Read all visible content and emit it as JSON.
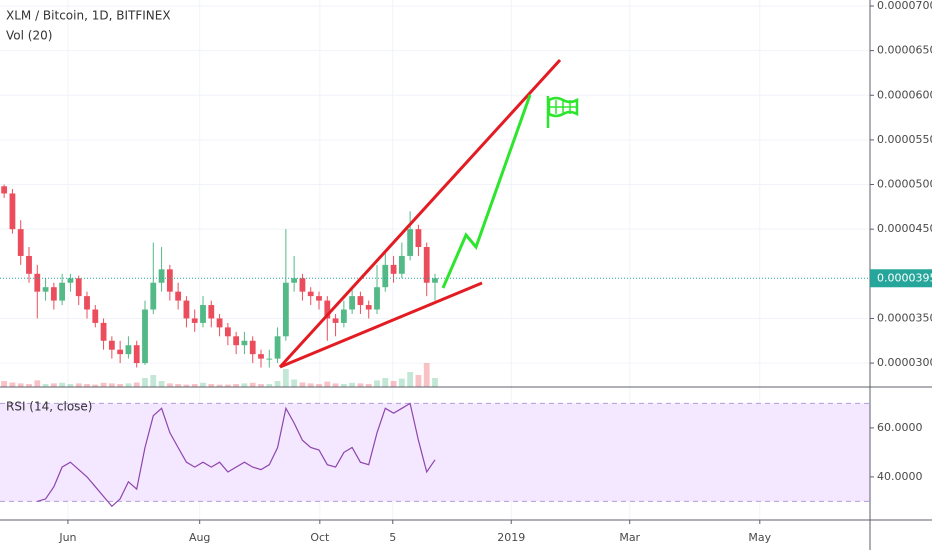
{
  "chart_data": {
    "type": "candlestick",
    "title": "XLM / Bitcoin, 1D, BITFINEX",
    "volume_label": "Vol (20)",
    "open": [
      4.98e-05,
      4.9e-05,
      4.5e-05,
      4.2e-05,
      4e-05,
      3.8e-05,
      3.85e-05,
      3.7e-05,
      3.9e-05,
      3.95e-05,
      3.75e-05,
      3.6e-05,
      3.45e-05,
      3.25e-05,
      3.15e-05,
      3.1e-05,
      3.2e-05,
      3e-05,
      3.6e-05,
      3.9e-05,
      4.05e-05,
      3.8e-05,
      3.7e-05,
      3.5e-05,
      3.45e-05,
      3.65e-05,
      3.5e-05,
      3.4e-05,
      3.3e-05,
      3.2e-05,
      3.25e-05,
      3.1e-05,
      3.05e-05,
      3.05e-05,
      3.3e-05,
      3.9e-05,
      3.95e-05,
      3.8e-05,
      3.75e-05,
      3.7e-05,
      3.5e-05,
      3.45e-05,
      3.6e-05,
      3.75e-05,
      3.65e-05,
      3.6e-05,
      3.85e-05,
      4.1e-05,
      4e-05,
      4.2e-05,
      4.5e-05,
      4.3e-05,
      3.9e-05
    ],
    "high": [
      5e-05,
      4.95e-05,
      4.6e-05,
      4.3e-05,
      4.1e-05,
      3.95e-05,
      3.9e-05,
      4e-05,
      4e-05,
      3.98e-05,
      3.8e-05,
      3.65e-05,
      3.5e-05,
      3.3e-05,
      3.25e-05,
      3.3e-05,
      3.25e-05,
      3.7e-05,
      4.35e-05,
      4.3e-05,
      4.1e-05,
      3.9e-05,
      3.75e-05,
      3.6e-05,
      3.75e-05,
      3.7e-05,
      3.55e-05,
      3.45e-05,
      3.35e-05,
      3.35e-05,
      3.3e-05,
      3.15e-05,
      3.15e-05,
      3.4e-05,
      4.5e-05,
      4.2e-05,
      4e-05,
      3.85e-05,
      3.8e-05,
      3.75e-05,
      3.55e-05,
      3.7e-05,
      3.85e-05,
      3.8e-05,
      3.7e-05,
      4.1e-05,
      4.25e-05,
      4.2e-05,
      4.35e-05,
      4.7e-05,
      4.55e-05,
      4.35e-05,
      4e-05
    ],
    "low": [
      4.85e-05,
      4.45e-05,
      4.1e-05,
      3.9e-05,
      3.5e-05,
      3.7e-05,
      3.6e-05,
      3.65e-05,
      3.8e-05,
      3.65e-05,
      3.5e-05,
      3.4e-05,
      3.15e-05,
      3.05e-05,
      3e-05,
      3.05e-05,
      2.95e-05,
      2.98e-05,
      3.55e-05,
      3.8e-05,
      3.7e-05,
      3.6e-05,
      3.4e-05,
      3.35e-05,
      3.4e-05,
      3.4e-05,
      3.3e-05,
      3.2e-05,
      3.1e-05,
      3.1e-05,
      3e-05,
      2.95e-05,
      2.95e-05,
      3e-05,
      3.25e-05,
      3.8e-05,
      3.7e-05,
      3.65e-05,
      3.6e-05,
      3.25e-05,
      3.3e-05,
      3.4e-05,
      3.55e-05,
      3.55e-05,
      3.5e-05,
      3.55e-05,
      3.8e-05,
      3.9e-05,
      3.95e-05,
      4.15e-05,
      4.2e-05,
      3.75e-05,
      3.7e-05
    ],
    "close": [
      4.9e-05,
      4.5e-05,
      4.2e-05,
      4e-05,
      3.8e-05,
      3.85e-05,
      3.7e-05,
      3.9e-05,
      3.95e-05,
      3.75e-05,
      3.6e-05,
      3.45e-05,
      3.25e-05,
      3.15e-05,
      3.1e-05,
      3.2e-05,
      3e-05,
      3.6e-05,
      3.9e-05,
      4.05e-05,
      3.8e-05,
      3.7e-05,
      3.5e-05,
      3.45e-05,
      3.65e-05,
      3.5e-05,
      3.4e-05,
      3.3e-05,
      3.2e-05,
      3.25e-05,
      3.1e-05,
      3.05e-05,
      3.05e-05,
      3.3e-05,
      3.9e-05,
      3.95e-05,
      3.8e-05,
      3.75e-05,
      3.7e-05,
      3.5e-05,
      3.45e-05,
      3.6e-05,
      3.75e-05,
      3.65e-05,
      3.6e-05,
      3.85e-05,
      4.1e-05,
      4e-05,
      4.2e-05,
      4.5e-05,
      4.3e-05,
      3.9e-05,
      3.95e-05
    ],
    "volume": [
      20,
      15,
      12,
      10,
      22,
      10,
      12,
      14,
      10,
      12,
      10,
      8,
      14,
      12,
      10,
      12,
      15,
      30,
      40,
      20,
      12,
      10,
      8,
      10,
      14,
      10,
      8,
      8,
      10,
      12,
      14,
      10,
      10,
      20,
      60,
      25,
      15,
      12,
      10,
      18,
      12,
      10,
      14,
      12,
      10,
      22,
      30,
      20,
      28,
      50,
      40,
      80,
      30
    ],
    "vol_lim": [
      0,
      100
    ],
    "up_color": "#53b987",
    "down_color": "#eb4d5c",
    "xlim": [
      -0.5,
      104.5
    ],
    "xticks": [
      {
        "value": 7.7,
        "label": "Jun"
      },
      {
        "value": 23.6,
        "label": "Aug"
      },
      {
        "value": 38.1,
        "label": "Oct"
      },
      {
        "value": 46.9,
        "label": "5"
      },
      {
        "value": 61.2,
        "label": "2019"
      },
      {
        "value": 75.5,
        "label": "Mar"
      },
      {
        "value": 91.2,
        "label": "May"
      }
    ],
    "ylim": [
      2.732e-05,
      7.067e-05
    ],
    "yticks": [
      {
        "value": 3e-05,
        "label": "0.00003000"
      },
      {
        "value": 3.5e-05,
        "label": "0.00003500"
      },
      {
        "value": 4.5e-05,
        "label": "0.00004500"
      },
      {
        "value": 5e-05,
        "label": "0.00005000"
      },
      {
        "value": 5.5e-05,
        "label": "0.00005500"
      },
      {
        "value": 6e-05,
        "label": "0.00006000"
      },
      {
        "value": 6.5e-05,
        "label": "0.00006500"
      },
      {
        "value": 7e-05,
        "label": "0.00007000"
      }
    ],
    "last_price": {
      "value": 3.95e-05,
      "label": "0.00003950"
    },
    "rsi": {
      "label": "RSI (14, close)",
      "color": "#8e44ad",
      "values": [
        null,
        null,
        null,
        null,
        30,
        31,
        36,
        44,
        46,
        43,
        40,
        36,
        32,
        28,
        31,
        38,
        35,
        52,
        65,
        68,
        58,
        52,
        46,
        44,
        46,
        44,
        46,
        42,
        44,
        46,
        44,
        43,
        45,
        52,
        68,
        62,
        55,
        52,
        51,
        45,
        44,
        50,
        52,
        46,
        45,
        58,
        68,
        66,
        68,
        70,
        55,
        42,
        47
      ],
      "ylim": [
        22.4,
        76.3
      ],
      "yticks": [
        {
          "value": 60,
          "label": "60.0000"
        },
        {
          "value": 40,
          "label": "40.0000"
        }
      ],
      "bands": [
        30,
        70
      ]
    }
  }
}
